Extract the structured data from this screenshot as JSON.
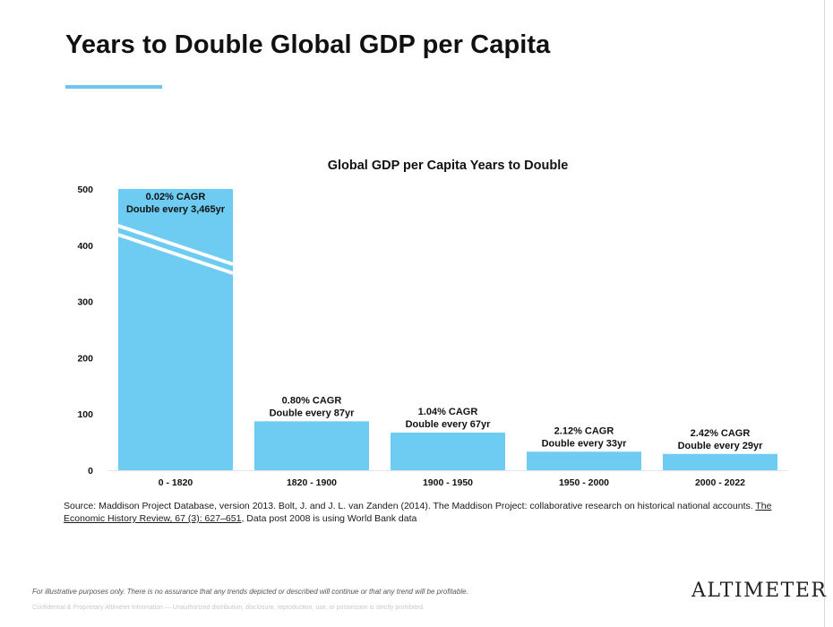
{
  "slide": {
    "title": "Years to Double Global GDP per Capita",
    "accent_color": "#6cc6ee"
  },
  "chart_data": {
    "type": "bar",
    "title": "Global GDP per Capita Years to Double",
    "categories": [
      "0 - 1820",
      "1820 - 1900",
      "1900 - 1950",
      "1950 - 2000",
      "2000 - 2022"
    ],
    "values": [
      3465,
      87,
      67,
      33,
      29
    ],
    "ylim": [
      0,
      500
    ],
    "yticks": [
      0,
      100,
      200,
      300,
      400,
      500
    ],
    "axis_break": "first bar truncated at 500 (actual 3,465)",
    "bar_color": "#6ecbf2",
    "annotations": [
      {
        "line1": "0.02% CAGR",
        "line2": "Double every 3,465yr"
      },
      {
        "line1": "0.80% CAGR",
        "line2": "Double every 87yr"
      },
      {
        "line1": "1.04% CAGR",
        "line2": "Double every 67yr"
      },
      {
        "line1": "2.12% CAGR",
        "line2": "Double every 33yr"
      },
      {
        "line1": "2.42% CAGR",
        "line2": "Double every 29yr"
      }
    ],
    "xlabel": "",
    "ylabel": ""
  },
  "source": {
    "prefix": "Source: Maddison Project Database, version 2013. Bolt, J. and J. L. van Zanden (2014). The Maddison Project: collaborative research on historical national accounts. ",
    "journal_first": "The",
    "journal_rest": "Economic History Review, 67 (3): 627–651",
    "suffix": ", Data post 2008 is using World Bank data"
  },
  "footer": {
    "disclaimer": "For illustrative purposes only. There is no assurance that any trends depicted or described will continue or that any trend will be profitable.",
    "confidential": "Confidential & Proprietary Altimeter Information — Unauthorized distribution, disclosure, reproduction, use, or possession is strictly prohibited.",
    "logo": "ALTIMETER"
  }
}
